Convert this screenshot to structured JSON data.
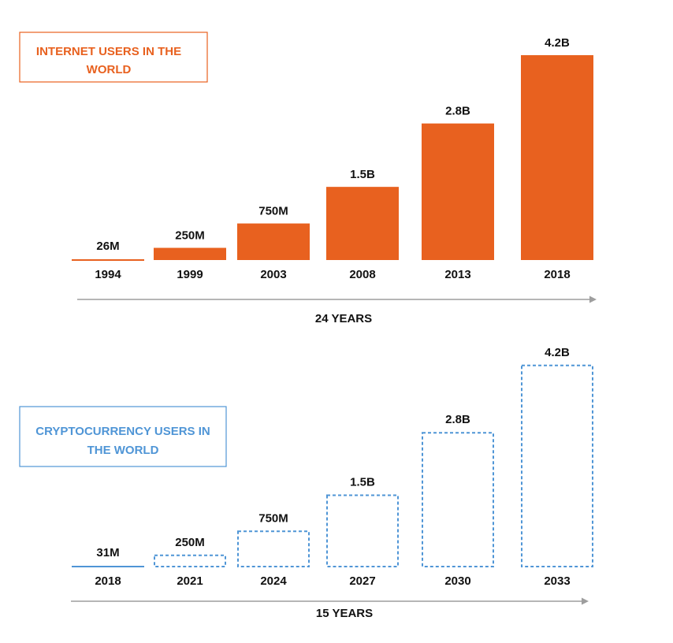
{
  "colors": {
    "internet": "#e8611f",
    "crypto": "#4f95d6",
    "axis": "#9e9e9e",
    "text": "#111111"
  },
  "chart_data": [
    {
      "type": "bar",
      "style": "solid",
      "legend_lines": [
        "INTERNET USERS IN THE",
        "WORLD"
      ],
      "categories": [
        "1994",
        "1999",
        "2003",
        "2008",
        "2013",
        "2018"
      ],
      "values": [
        0.026,
        0.25,
        0.75,
        1.5,
        2.8,
        4.2
      ],
      "value_labels": [
        "26M",
        "250M",
        "750M",
        "1.5B",
        "2.8B",
        "4.2B"
      ],
      "unit": "billion users",
      "span_label": "24 YEARS"
    },
    {
      "type": "bar",
      "style": "dashed",
      "legend_lines": [
        "CRYPTOCURRENCY USERS IN",
        "THE WORLD"
      ],
      "categories": [
        "2018",
        "2021",
        "2024",
        "2027",
        "2030",
        "2033"
      ],
      "values": [
        0.031,
        0.25,
        0.75,
        1.5,
        2.8,
        4.2
      ],
      "value_labels": [
        "31M",
        "250M",
        "750M",
        "1.5B",
        "2.8B",
        "4.2B"
      ],
      "unit": "billion users",
      "span_label": "15 YEARS"
    }
  ]
}
